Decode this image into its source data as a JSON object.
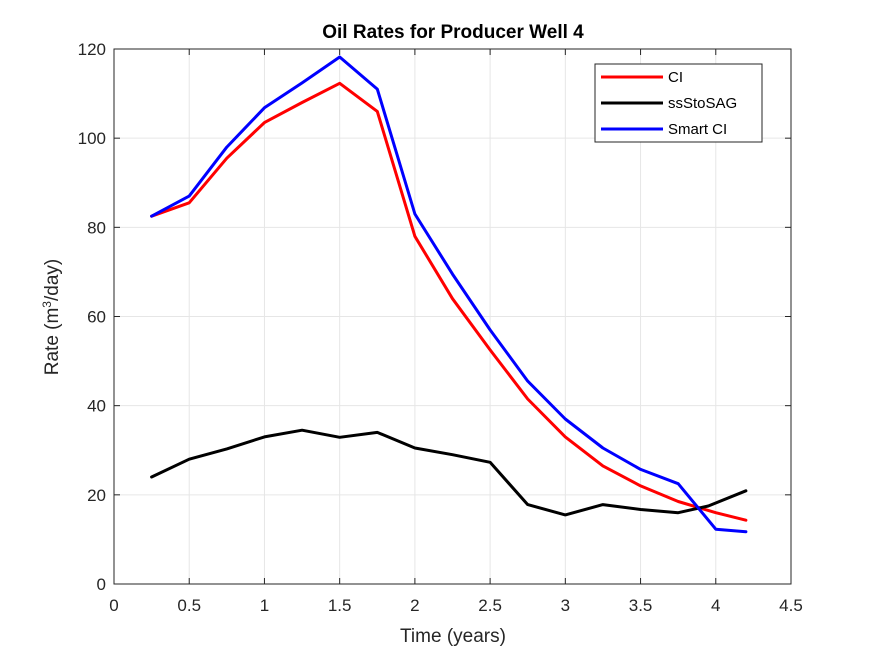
{
  "chart_data": {
    "type": "line",
    "title": "Oil Rates for Producer Well 4",
    "xlabel": "Time (years)",
    "ylabel_main": "Rate (m",
    "ylabel_sup": "3",
    "ylabel_tail": "/day)",
    "xlim": [
      0,
      4.5
    ],
    "ylim": [
      0,
      120
    ],
    "xticks": [
      0,
      0.5,
      1,
      1.5,
      2,
      2.5,
      3,
      3.5,
      4,
      4.5
    ],
    "yticks": [
      0,
      20,
      40,
      60,
      80,
      100,
      120
    ],
    "grid": true,
    "legend_position": "top-right",
    "series": [
      {
        "name": "CI",
        "color": "#ff0000",
        "x": [
          0.25,
          0.5,
          0.75,
          1.0,
          1.25,
          1.5,
          1.75,
          2.0,
          2.25,
          2.5,
          2.75,
          3.0,
          3.25,
          3.5,
          3.75,
          4.0,
          4.2
        ],
        "y": [
          82.5,
          85.5,
          95.5,
          103.5,
          108,
          112.3,
          106,
          78,
          64,
          52.5,
          41.5,
          33,
          26.5,
          22,
          18.5,
          16,
          14.3
        ]
      },
      {
        "name": "ssStoSAG",
        "color": "#000000",
        "x": [
          0.25,
          0.5,
          0.75,
          1.0,
          1.25,
          1.5,
          1.75,
          2.0,
          2.25,
          2.5,
          2.75,
          3.0,
          3.25,
          3.5,
          3.75,
          3.95,
          4.2
        ],
        "y": [
          24,
          28,
          30.3,
          33,
          34.5,
          32.9,
          34,
          30.5,
          29,
          27.3,
          17.8,
          15.5,
          17.8,
          16.7,
          16,
          17.5,
          20.9
        ]
      },
      {
        "name": "Smart CI",
        "color": "#0000ff",
        "x": [
          0.25,
          0.5,
          0.75,
          1.0,
          1.25,
          1.5,
          1.75,
          2.0,
          2.25,
          2.5,
          2.75,
          3.0,
          3.25,
          3.5,
          3.75,
          4.0,
          4.2
        ],
        "y": [
          82.5,
          87,
          98,
          106.8,
          112.4,
          118.2,
          111,
          83,
          69.5,
          57,
          45.5,
          37,
          30.5,
          25.7,
          22.5,
          12.3,
          11.7
        ]
      }
    ]
  }
}
